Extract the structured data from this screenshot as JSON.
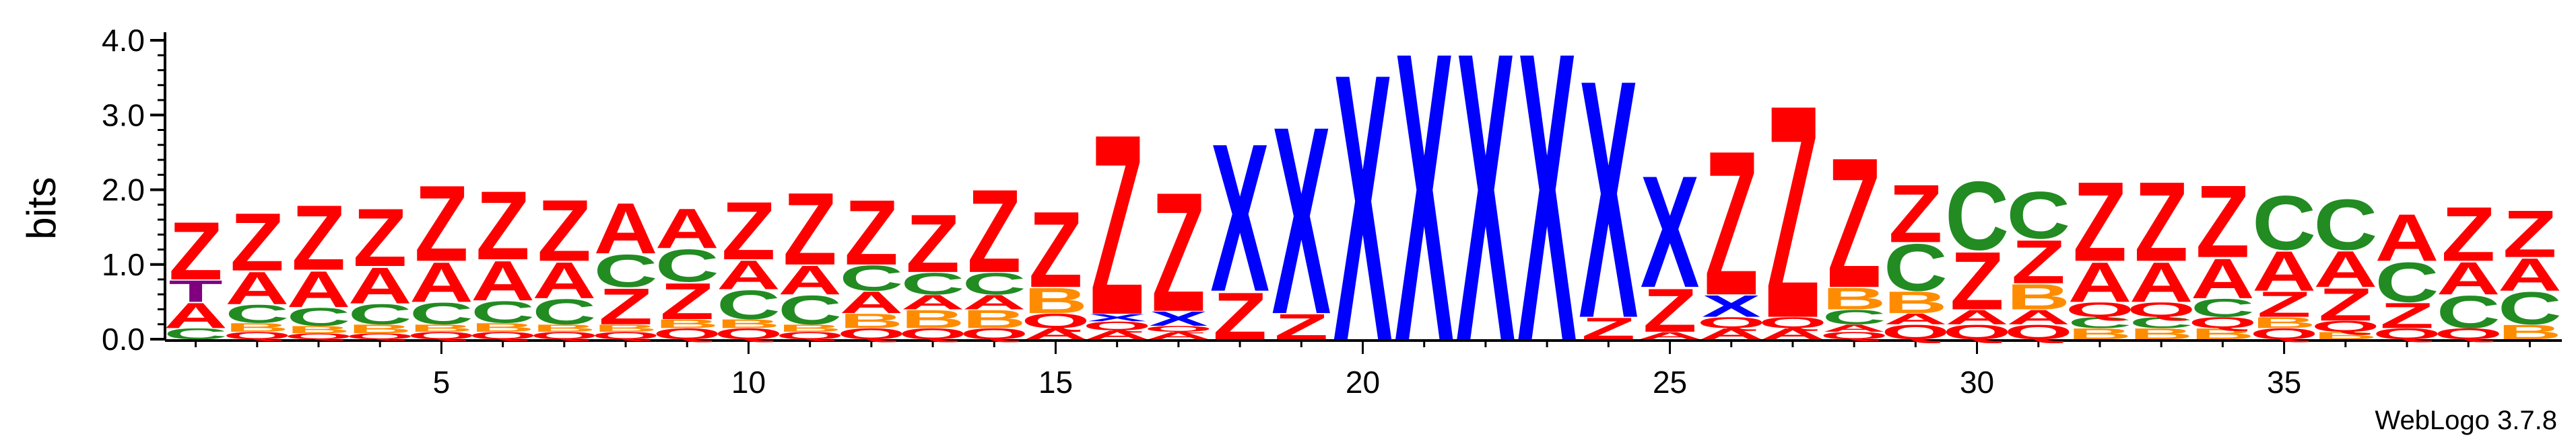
{
  "chart_data": {
    "type": "sequence-logo",
    "ylabel": "bits",
    "ylim": [
      0,
      4.0
    ],
    "yticks": [
      "0.0",
      "1.0",
      "2.0",
      "3.0",
      "4.0"
    ],
    "xticks": [
      5,
      10,
      15,
      20,
      25,
      30,
      35
    ],
    "positions": 39,
    "colors": {
      "Z": "#ff0000",
      "X": "#0000ff",
      "A": "#ff0000",
      "C": "#228b22",
      "B": "#ff8c00",
      "Q": "#ff0000",
      "T": "#800080"
    },
    "stacks": [
      [
        [
          "C",
          0.15
        ],
        [
          "A",
          0.35
        ],
        [
          "T",
          0.3
        ],
        [
          "Z",
          0.8
        ]
      ],
      [
        [
          "Q",
          0.1
        ],
        [
          "B",
          0.12
        ],
        [
          "C",
          0.25
        ],
        [
          "A",
          0.45
        ],
        [
          "Z",
          0.8
        ]
      ],
      [
        [
          "Q",
          0.08
        ],
        [
          "B",
          0.1
        ],
        [
          "C",
          0.25
        ],
        [
          "A",
          0.5
        ],
        [
          "Z",
          0.9
        ]
      ],
      [
        [
          "Q",
          0.08
        ],
        [
          "B",
          0.12
        ],
        [
          "C",
          0.28
        ],
        [
          "A",
          0.5
        ],
        [
          "Z",
          0.8
        ]
      ],
      [
        [
          "Q",
          0.1
        ],
        [
          "B",
          0.1
        ],
        [
          "C",
          0.3
        ],
        [
          "A",
          0.55
        ],
        [
          "Z",
          1.05
        ]
      ],
      [
        [
          "Q",
          0.1
        ],
        [
          "B",
          0.12
        ],
        [
          "C",
          0.3
        ],
        [
          "A",
          0.55
        ],
        [
          "Z",
          0.95
        ]
      ],
      [
        [
          "Q",
          0.1
        ],
        [
          "B",
          0.1
        ],
        [
          "C",
          0.35
        ],
        [
          "A",
          0.5
        ],
        [
          "Z",
          0.85
        ]
      ],
      [
        [
          "Q",
          0.1
        ],
        [
          "B",
          0.1
        ],
        [
          "Z",
          0.5
        ],
        [
          "C",
          0.45
        ],
        [
          "A",
          0.7
        ]
      ],
      [
        [
          "Q",
          0.15
        ],
        [
          "B",
          0.12
        ],
        [
          "Z",
          0.5
        ],
        [
          "C",
          0.45
        ],
        [
          "A",
          0.55
        ]
      ],
      [
        [
          "Q",
          0.15
        ],
        [
          "B",
          0.12
        ],
        [
          "C",
          0.4
        ],
        [
          "A",
          0.4
        ],
        [
          "Z",
          0.8
        ]
      ],
      [
        [
          "Q",
          0.1
        ],
        [
          "B",
          0.1
        ],
        [
          "C",
          0.4
        ],
        [
          "A",
          0.4
        ],
        [
          "Z",
          1.0
        ]
      ],
      [
        [
          "Q",
          0.15
        ],
        [
          "B",
          0.2
        ],
        [
          "A",
          0.3
        ],
        [
          "C",
          0.35
        ],
        [
          "Z",
          0.9
        ]
      ],
      [
        [
          "Q",
          0.15
        ],
        [
          "B",
          0.25
        ],
        [
          "A",
          0.2
        ],
        [
          "C",
          0.3
        ],
        [
          "Z",
          0.8
        ]
      ],
      [
        [
          "Q",
          0.15
        ],
        [
          "B",
          0.25
        ],
        [
          "A",
          0.2
        ],
        [
          "C",
          0.3
        ],
        [
          "Z",
          1.15
        ]
      ],
      [
        [
          "A",
          0.15
        ],
        [
          "Q",
          0.2
        ],
        [
          "B",
          0.35
        ],
        [
          "Z",
          1.05
        ]
      ],
      [
        [
          "A",
          0.12
        ],
        [
          "Q",
          0.12
        ],
        [
          "X",
          0.1
        ],
        [
          "Z",
          2.5
        ]
      ],
      [
        [
          "A",
          0.1
        ],
        [
          "Q",
          0.08
        ],
        [
          "X",
          0.2
        ],
        [
          "Z",
          1.65
        ]
      ],
      [
        [
          "Z",
          0.65
        ],
        [
          "X",
          2.05
        ]
      ],
      [
        [
          "Z",
          0.35
        ],
        [
          "X",
          2.6
        ]
      ],
      [
        [
          "X",
          3.7
        ]
      ],
      [
        [
          "X",
          4.0
        ]
      ],
      [
        [
          "X",
          4.0
        ]
      ],
      [
        [
          "X",
          4.0
        ]
      ],
      [
        [
          "Z",
          0.3
        ],
        [
          "X",
          3.3
        ]
      ],
      [
        [
          "A",
          0.1
        ],
        [
          "Z",
          0.6
        ],
        [
          "X",
          1.55
        ]
      ],
      [
        [
          "A",
          0.15
        ],
        [
          "Q",
          0.15
        ],
        [
          "X",
          0.3
        ],
        [
          "Z",
          2.0
        ]
      ],
      [
        [
          "A",
          0.15
        ],
        [
          "Q",
          0.15
        ],
        [
          "Z",
          2.95
        ]
      ],
      [
        [
          "Q",
          0.1
        ],
        [
          "A",
          0.1
        ],
        [
          "C",
          0.2
        ],
        [
          "B",
          0.3
        ],
        [
          "Z",
          1.8
        ]
      ],
      [
        [
          "Q",
          0.2
        ],
        [
          "A",
          0.15
        ],
        [
          "B",
          0.3
        ],
        [
          "C",
          0.65
        ],
        [
          "Z",
          0.8
        ]
      ],
      [
        [
          "Q",
          0.2
        ],
        [
          "A",
          0.2
        ],
        [
          "Z",
          0.8
        ],
        [
          "C",
          0.95
        ]
      ],
      [
        [
          "Q",
          0.2
        ],
        [
          "A",
          0.2
        ],
        [
          "B",
          0.35
        ],
        [
          "Z",
          0.6
        ],
        [
          "C",
          0.65
        ]
      ],
      [
        [
          "B",
          0.15
        ],
        [
          "C",
          0.15
        ],
        [
          "Q",
          0.2
        ],
        [
          "A",
          0.55
        ],
        [
          "Z",
          1.1
        ]
      ],
      [
        [
          "B",
          0.15
        ],
        [
          "C",
          0.15
        ],
        [
          "Q",
          0.2
        ],
        [
          "A",
          0.55
        ],
        [
          "Z",
          1.1
        ]
      ],
      [
        [
          "B",
          0.15
        ],
        [
          "Q",
          0.15
        ],
        [
          "C",
          0.25
        ],
        [
          "A",
          0.55
        ],
        [
          "Z",
          1.0
        ]
      ],
      [
        [
          "Q",
          0.15
        ],
        [
          "B",
          0.15
        ],
        [
          "Z",
          0.35
        ],
        [
          "A",
          0.55
        ],
        [
          "C",
          0.75
        ]
      ],
      [
        [
          "B",
          0.1
        ],
        [
          "Q",
          0.15
        ],
        [
          "Z",
          0.45
        ],
        [
          "A",
          0.5
        ],
        [
          "C",
          0.7
        ]
      ],
      [
        [
          "Q",
          0.15
        ],
        [
          "Z",
          0.35
        ],
        [
          "C",
          0.55
        ],
        [
          "A",
          0.65
        ]
      ],
      [
        [
          "Q",
          0.15
        ],
        [
          "C",
          0.45
        ],
        [
          "A",
          0.45
        ],
        [
          "Z",
          0.75
        ]
      ],
      [
        [
          "B",
          0.2
        ],
        [
          "C",
          0.45
        ],
        [
          "A",
          0.45
        ],
        [
          "Z",
          0.65
        ]
      ]
    ]
  },
  "credit": "WebLogo 3.7.8"
}
